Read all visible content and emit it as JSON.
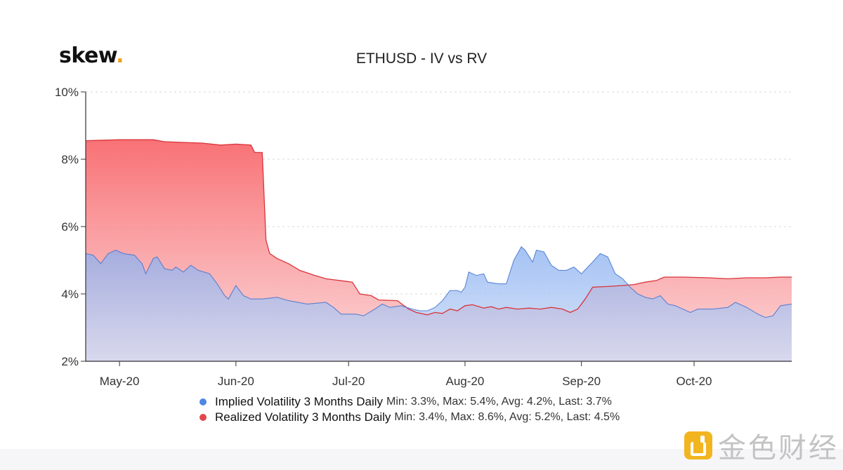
{
  "brand": {
    "name": "skew",
    "dot": "."
  },
  "watermark": {
    "text": "金色财经"
  },
  "colors": {
    "implied": "#4f86e3",
    "realized": "#e0474c",
    "grid": "#d9d9d9",
    "axis": "#333333"
  },
  "chart_data": {
    "type": "area",
    "title": "ETHUSD - IV vs RV",
    "ylim": [
      2,
      10
    ],
    "y_ticks": [
      {
        "value": 2,
        "label": "2%"
      },
      {
        "value": 4,
        "label": "4%"
      },
      {
        "value": 6,
        "label": "6%"
      },
      {
        "value": 8,
        "label": "8%"
      },
      {
        "value": 10,
        "label": "10%"
      }
    ],
    "xlim": [
      "2020-04-22",
      "2020-10-27"
    ],
    "x_ticks": [
      {
        "date": "2020-05-01",
        "label": "May-20"
      },
      {
        "date": "2020-06-01",
        "label": "Jun-20"
      },
      {
        "date": "2020-07-01",
        "label": "Jul-20"
      },
      {
        "date": "2020-08-01",
        "label": "Aug-20"
      },
      {
        "date": "2020-09-01",
        "label": "Sep-20"
      },
      {
        "date": "2020-10-01",
        "label": "Oct-20"
      }
    ],
    "grid": "horizontal dashed",
    "legend_position": "bottom",
    "series": [
      {
        "name": "Implied Volatility 3 Months Daily",
        "stats": "Min: 3.3%, Max: 5.4%, Avg: 4.2%, Last: 3.7%",
        "color": "#4f86e3",
        "points": [
          [
            "2020-04-22",
            5.2
          ],
          [
            "2020-04-24",
            5.15
          ],
          [
            "2020-04-26",
            4.9
          ],
          [
            "2020-04-28",
            5.2
          ],
          [
            "2020-04-30",
            5.3
          ],
          [
            "2020-05-02",
            5.2
          ],
          [
            "2020-05-05",
            5.15
          ],
          [
            "2020-05-07",
            4.9
          ],
          [
            "2020-05-08",
            4.6
          ],
          [
            "2020-05-10",
            5.05
          ],
          [
            "2020-05-11",
            5.1
          ],
          [
            "2020-05-13",
            4.75
          ],
          [
            "2020-05-15",
            4.7
          ],
          [
            "2020-05-16",
            4.8
          ],
          [
            "2020-05-18",
            4.65
          ],
          [
            "2020-05-20",
            4.85
          ],
          [
            "2020-05-22",
            4.7
          ],
          [
            "2020-05-25",
            4.6
          ],
          [
            "2020-05-27",
            4.3
          ],
          [
            "2020-05-29",
            3.95
          ],
          [
            "2020-05-30",
            3.85
          ],
          [
            "2020-06-01",
            4.25
          ],
          [
            "2020-06-03",
            3.95
          ],
          [
            "2020-06-05",
            3.85
          ],
          [
            "2020-06-08",
            3.85
          ],
          [
            "2020-06-12",
            3.9
          ],
          [
            "2020-06-15",
            3.8
          ],
          [
            "2020-06-20",
            3.7
          ],
          [
            "2020-06-25",
            3.75
          ],
          [
            "2020-06-27",
            3.6
          ],
          [
            "2020-06-29",
            3.4
          ],
          [
            "2020-07-03",
            3.4
          ],
          [
            "2020-07-05",
            3.35
          ],
          [
            "2020-07-08",
            3.55
          ],
          [
            "2020-07-10",
            3.7
          ],
          [
            "2020-07-12",
            3.6
          ],
          [
            "2020-07-15",
            3.65
          ],
          [
            "2020-07-18",
            3.55
          ],
          [
            "2020-07-20",
            3.5
          ],
          [
            "2020-07-22",
            3.5
          ],
          [
            "2020-07-24",
            3.6
          ],
          [
            "2020-07-26",
            3.8
          ],
          [
            "2020-07-28",
            4.1
          ],
          [
            "2020-07-30",
            4.1
          ],
          [
            "2020-07-31",
            4.05
          ],
          [
            "2020-08-01",
            4.2
          ],
          [
            "2020-08-02",
            4.65
          ],
          [
            "2020-08-04",
            4.55
          ],
          [
            "2020-08-06",
            4.6
          ],
          [
            "2020-08-07",
            4.35
          ],
          [
            "2020-08-10",
            4.3
          ],
          [
            "2020-08-12",
            4.3
          ],
          [
            "2020-08-14",
            5.0
          ],
          [
            "2020-08-15",
            5.2
          ],
          [
            "2020-08-16",
            5.4
          ],
          [
            "2020-08-17",
            5.3
          ],
          [
            "2020-08-19",
            4.95
          ],
          [
            "2020-08-20",
            5.3
          ],
          [
            "2020-08-22",
            5.25
          ],
          [
            "2020-08-24",
            4.85
          ],
          [
            "2020-08-26",
            4.7
          ],
          [
            "2020-08-28",
            4.7
          ],
          [
            "2020-08-30",
            4.8
          ],
          [
            "2020-09-01",
            4.6
          ],
          [
            "2020-09-04",
            4.95
          ],
          [
            "2020-09-06",
            5.2
          ],
          [
            "2020-09-08",
            5.1
          ],
          [
            "2020-09-10",
            4.6
          ],
          [
            "2020-09-12",
            4.45
          ],
          [
            "2020-09-14",
            4.2
          ],
          [
            "2020-09-16",
            4.0
          ],
          [
            "2020-09-18",
            3.9
          ],
          [
            "2020-09-20",
            3.85
          ],
          [
            "2020-09-22",
            3.95
          ],
          [
            "2020-09-24",
            3.7
          ],
          [
            "2020-09-26",
            3.65
          ],
          [
            "2020-09-30",
            3.45
          ],
          [
            "2020-10-02",
            3.55
          ],
          [
            "2020-10-06",
            3.55
          ],
          [
            "2020-10-10",
            3.6
          ],
          [
            "2020-10-12",
            3.75
          ],
          [
            "2020-10-15",
            3.6
          ],
          [
            "2020-10-18",
            3.4
          ],
          [
            "2020-10-20",
            3.3
          ],
          [
            "2020-10-22",
            3.35
          ],
          [
            "2020-10-24",
            3.65
          ],
          [
            "2020-10-27",
            3.7
          ]
        ]
      },
      {
        "name": "Realized Volatility 3 Months Daily",
        "stats": "Min: 3.4%, Max: 8.6%, Avg: 5.2%, Last: 4.5%",
        "color": "#e0474c",
        "points": [
          [
            "2020-04-22",
            8.55
          ],
          [
            "2020-05-01",
            8.58
          ],
          [
            "2020-05-05",
            8.58
          ],
          [
            "2020-05-10",
            8.58
          ],
          [
            "2020-05-13",
            8.52
          ],
          [
            "2020-05-18",
            8.5
          ],
          [
            "2020-05-23",
            8.48
          ],
          [
            "2020-05-28",
            8.42
          ],
          [
            "2020-06-01",
            8.45
          ],
          [
            "2020-06-05",
            8.42
          ],
          [
            "2020-06-06",
            8.2
          ],
          [
            "2020-06-08",
            8.2
          ],
          [
            "2020-06-09",
            5.6
          ],
          [
            "2020-06-10",
            5.2
          ],
          [
            "2020-06-12",
            5.05
          ],
          [
            "2020-06-15",
            4.9
          ],
          [
            "2020-06-18",
            4.7
          ],
          [
            "2020-06-22",
            4.55
          ],
          [
            "2020-06-25",
            4.45
          ],
          [
            "2020-06-30",
            4.38
          ],
          [
            "2020-07-02",
            4.35
          ],
          [
            "2020-07-04",
            4.0
          ],
          [
            "2020-07-07",
            3.95
          ],
          [
            "2020-07-09",
            3.82
          ],
          [
            "2020-07-14",
            3.8
          ],
          [
            "2020-07-17",
            3.55
          ],
          [
            "2020-07-19",
            3.45
          ],
          [
            "2020-07-22",
            3.38
          ],
          [
            "2020-07-24",
            3.45
          ],
          [
            "2020-07-26",
            3.42
          ],
          [
            "2020-07-28",
            3.55
          ],
          [
            "2020-07-30",
            3.5
          ],
          [
            "2020-08-01",
            3.65
          ],
          [
            "2020-08-03",
            3.68
          ],
          [
            "2020-08-06",
            3.58
          ],
          [
            "2020-08-08",
            3.62
          ],
          [
            "2020-08-10",
            3.55
          ],
          [
            "2020-08-12",
            3.6
          ],
          [
            "2020-08-15",
            3.55
          ],
          [
            "2020-08-18",
            3.58
          ],
          [
            "2020-08-21",
            3.55
          ],
          [
            "2020-08-24",
            3.6
          ],
          [
            "2020-08-27",
            3.55
          ],
          [
            "2020-08-29",
            3.45
          ],
          [
            "2020-08-31",
            3.55
          ],
          [
            "2020-09-02",
            3.85
          ],
          [
            "2020-09-04",
            4.2
          ],
          [
            "2020-09-08",
            4.22
          ],
          [
            "2020-09-12",
            4.25
          ],
          [
            "2020-09-15",
            4.28
          ],
          [
            "2020-09-18",
            4.35
          ],
          [
            "2020-09-21",
            4.4
          ],
          [
            "2020-09-23",
            4.5
          ],
          [
            "2020-09-28",
            4.5
          ],
          [
            "2020-10-05",
            4.48
          ],
          [
            "2020-10-10",
            4.45
          ],
          [
            "2020-10-15",
            4.48
          ],
          [
            "2020-10-20",
            4.48
          ],
          [
            "2020-10-24",
            4.5
          ],
          [
            "2020-10-27",
            4.5
          ]
        ]
      }
    ]
  }
}
